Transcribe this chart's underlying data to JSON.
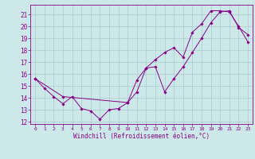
{
  "xlabel": "Windchill (Refroidissement éolien,°C)",
  "xlim": [
    -0.5,
    23.5
  ],
  "ylim": [
    11.8,
    21.8
  ],
  "yticks": [
    12,
    13,
    14,
    15,
    16,
    17,
    18,
    19,
    20,
    21
  ],
  "xticks": [
    0,
    1,
    2,
    3,
    4,
    5,
    6,
    7,
    8,
    9,
    10,
    11,
    12,
    13,
    14,
    15,
    16,
    17,
    18,
    19,
    20,
    21,
    22,
    23
  ],
  "background_color": "#cce8e8",
  "line_color": "#880088",
  "grid_color": "#aacccc",
  "line1_x": [
    0,
    1,
    2,
    3,
    4,
    5,
    6,
    7,
    8,
    9,
    10,
    11,
    12,
    13,
    14,
    15,
    16,
    17,
    18,
    19,
    20,
    21,
    22,
    23
  ],
  "line1_y": [
    15.6,
    14.8,
    14.1,
    13.5,
    14.1,
    13.1,
    12.9,
    12.2,
    13.0,
    13.1,
    13.6,
    15.5,
    16.5,
    16.6,
    14.5,
    15.6,
    16.6,
    17.8,
    19.0,
    20.3,
    21.2,
    21.3,
    19.9,
    19.3
  ],
  "line2_x": [
    0,
    3,
    10,
    11,
    12,
    13,
    14,
    15,
    16,
    17,
    18,
    19,
    20,
    21,
    22,
    23
  ],
  "line2_y": [
    15.6,
    14.1,
    13.6,
    14.5,
    16.5,
    17.2,
    17.8,
    18.2,
    17.4,
    19.5,
    20.2,
    21.3,
    21.3,
    21.2,
    20.0,
    18.7
  ]
}
